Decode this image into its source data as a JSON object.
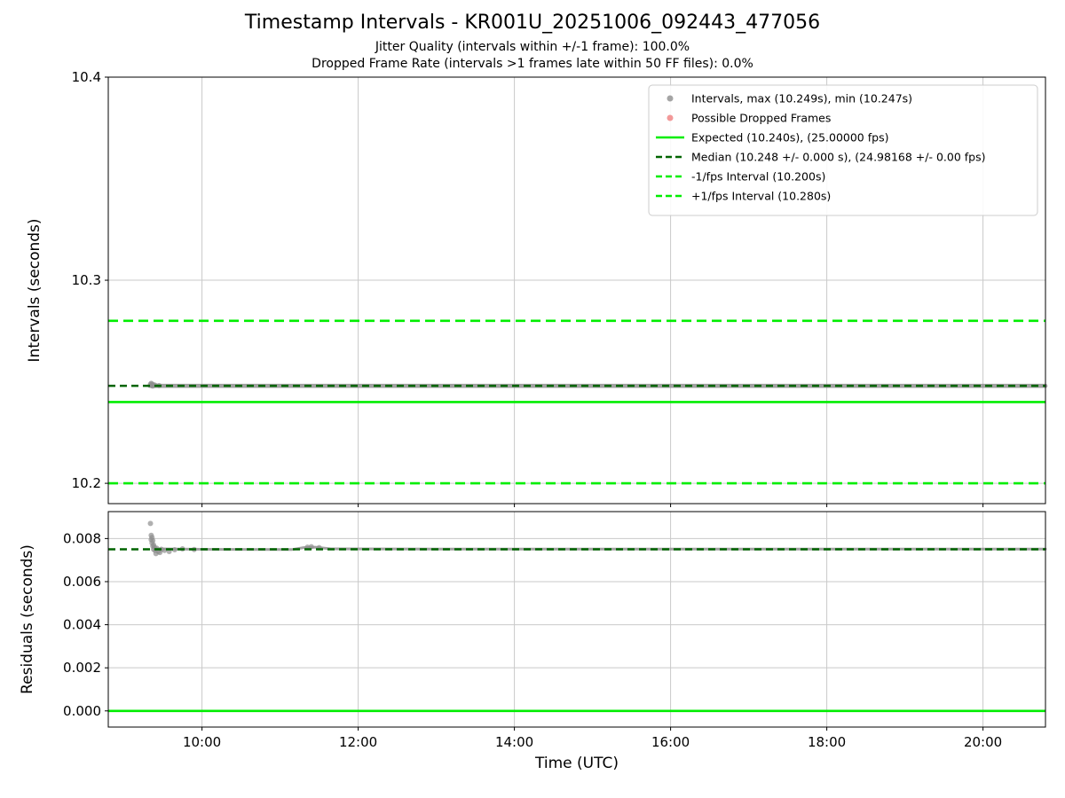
{
  "figure": {
    "title": "Timestamp Intervals - KR001U_20251006_092443_477056",
    "subtitle1": "Jitter Quality (intervals within +/-1 frame): 100.0%",
    "subtitle2": "Dropped Frame Rate (intervals >1 frames late within 50 FF files): 0.0%",
    "xlabel": "Time (UTC)"
  },
  "colors": {
    "scatter": "#8f8f8f",
    "dropped": "#f08080",
    "expected": "#00ee00",
    "median": "#006400",
    "fps_bound": "#00ee00",
    "grid": "#c9c9c9",
    "spine": "#000000",
    "legend_border": "#cccccc",
    "legend_bg": "#ffffff"
  },
  "chart_data": [
    {
      "type": "scatter",
      "ylabel": "Intervals (seconds)",
      "ylim": [
        10.19,
        10.4
      ],
      "ytick_values": [
        10.2,
        10.3,
        10.4
      ],
      "ytick_labels": [
        "10.2",
        "10.3",
        "10.4"
      ],
      "xlim": [
        8.8,
        20.8
      ],
      "xtick_values": [
        10,
        12,
        14,
        16,
        18,
        20
      ],
      "xtick_labels": [
        "10:00",
        "12:00",
        "14:00",
        "16:00",
        "18:00",
        "20:00"
      ],
      "grid": true,
      "band": {
        "y_mean": 10.248,
        "y_min": 10.247,
        "y_max": 10.249,
        "path": [
          [
            9.33,
            10.248
          ],
          [
            20.8,
            10.248
          ]
        ]
      },
      "points": [
        [
          9.34,
          10.2487
        ],
        [
          9.35,
          10.2492
        ],
        [
          9.355,
          10.2481
        ],
        [
          9.36,
          10.2488
        ],
        [
          9.37,
          10.2479
        ],
        [
          9.38,
          10.2485
        ],
        [
          9.4,
          10.2483
        ],
        [
          9.45,
          10.2481
        ]
      ],
      "hlines": [
        {
          "name": "plus-1fps-line",
          "y": 10.28,
          "style": "dashed",
          "color_key": "fps_bound",
          "dash": "11 6",
          "width": 2.6
        },
        {
          "name": "expected-line",
          "y": 10.24,
          "style": "solid",
          "color_key": "expected",
          "dash": "",
          "width": 2.6
        },
        {
          "name": "minus-1fps-line",
          "y": 10.2,
          "style": "dashed",
          "color_key": "fps_bound",
          "dash": "11 6",
          "width": 2.6
        },
        {
          "name": "median-line",
          "y": 10.248,
          "style": "dashed",
          "color_key": "median",
          "dash": "8 5",
          "width": 2.5
        }
      ],
      "legend": {
        "position": "upper right",
        "entries": [
          {
            "marker": "dot",
            "color_key": "scatter",
            "label": "Intervals, max (10.249s), min (10.247s)"
          },
          {
            "marker": "dot",
            "color_key": "dropped",
            "label": "Possible Dropped Frames"
          },
          {
            "marker": "solid-line",
            "color_key": "expected",
            "label": "Expected (10.240s), (25.00000 fps)"
          },
          {
            "marker": "dashed-line",
            "color_key": "median",
            "label": "Median (10.248 +/- 0.000 s), (24.98168 +/- 0.00 fps)"
          },
          {
            "marker": "dashed-line",
            "color_key": "fps_bound",
            "label": "-1/fps Interval (10.200s)"
          },
          {
            "marker": "dashed-line",
            "color_key": "fps_bound",
            "label": "+1/fps Interval (10.280s)"
          }
        ]
      }
    },
    {
      "type": "scatter",
      "ylabel": "Residuals (seconds)",
      "ylim": [
        -0.00075,
        0.00925
      ],
      "ytick_values": [
        0.0,
        0.002,
        0.004,
        0.006,
        0.008
      ],
      "ytick_labels": [
        "0.000",
        "0.002",
        "0.004",
        "0.006",
        "0.008"
      ],
      "xlim": [
        8.8,
        20.8
      ],
      "xtick_values": [
        10,
        12,
        14,
        16,
        18,
        20
      ],
      "xtick_labels": [
        "10:00",
        "12:00",
        "14:00",
        "16:00",
        "18:00",
        "20:00"
      ],
      "grid": true,
      "band": {
        "y_mean": 0.0075,
        "y_min": 0.00745,
        "y_max": 0.00755,
        "path": [
          [
            9.4,
            0.00752
          ],
          [
            10.0,
            0.0075
          ],
          [
            11.15,
            0.00749
          ],
          [
            11.3,
            0.00758
          ],
          [
            11.45,
            0.0076
          ],
          [
            11.65,
            0.00752
          ],
          [
            13.0,
            0.00751
          ],
          [
            16.0,
            0.00751
          ],
          [
            20.8,
            0.00751
          ]
        ]
      },
      "points": [
        [
          9.34,
          0.0087
        ],
        [
          9.35,
          0.00815
        ],
        [
          9.35,
          0.00795
        ],
        [
          9.36,
          0.00805
        ],
        [
          9.36,
          0.0078
        ],
        [
          9.37,
          0.0079
        ],
        [
          9.37,
          0.00765
        ],
        [
          9.38,
          0.0077
        ],
        [
          9.38,
          0.0075
        ],
        [
          9.39,
          0.0076
        ],
        [
          9.4,
          0.00745
        ],
        [
          9.41,
          0.0073
        ],
        [
          9.42,
          0.00755
        ],
        [
          9.44,
          0.0074
        ],
        [
          9.46,
          0.00735
        ],
        [
          9.48,
          0.0075
        ],
        [
          9.52,
          0.00745
        ],
        [
          9.58,
          0.0074
        ],
        [
          9.65,
          0.00748
        ],
        [
          9.75,
          0.00752
        ],
        [
          9.9,
          0.00749
        ],
        [
          11.35,
          0.0076
        ],
        [
          11.4,
          0.00762
        ],
        [
          11.5,
          0.00758
        ]
      ],
      "hlines": [
        {
          "name": "zero-line",
          "y": 0.0,
          "style": "solid",
          "color_key": "expected",
          "dash": "",
          "width": 2.6
        },
        {
          "name": "median-residual-line",
          "y": 0.0075,
          "style": "dashed",
          "color_key": "median",
          "dash": "8 5",
          "width": 2.5
        }
      ],
      "legend": null
    }
  ]
}
